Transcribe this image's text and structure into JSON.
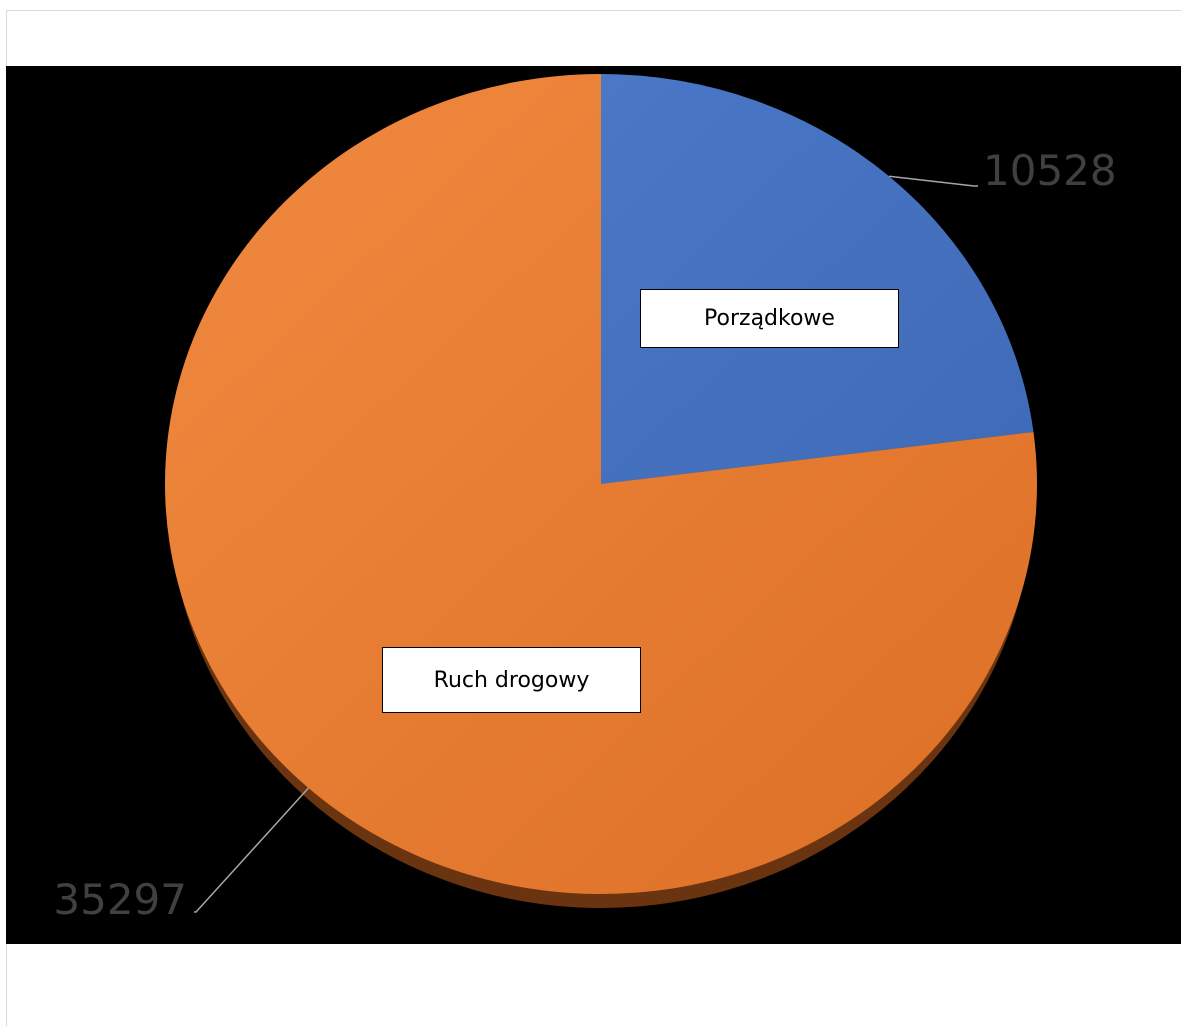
{
  "chart_data": {
    "type": "pie",
    "categories": [
      "Porządkowe",
      "Ruch drogowy"
    ],
    "values": [
      10528,
      35297
    ],
    "data_labels": [
      "10528",
      "35297"
    ],
    "colors": [
      "#4472c4",
      "#ed7d31"
    ],
    "start_angle": "12 o'clock, clockwise",
    "legend": "none",
    "background": "#000000",
    "effect": "3D bevel shadow"
  }
}
